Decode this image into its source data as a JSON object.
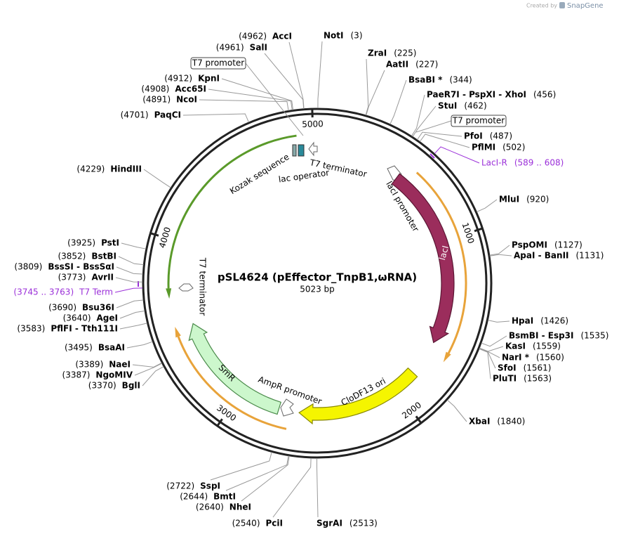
{
  "header": {
    "credit": "Created by",
    "brand": "SnapGene"
  },
  "map": {
    "name": "pSL4624 (pEffector_TnpB1,ωRNA)",
    "length_label": "5023 bp",
    "length": 5023,
    "ticks": [
      1000,
      2000,
      3000,
      4000,
      5000
    ]
  },
  "sites": [
    {
      "name": "NotI",
      "position": 3,
      "label": "(3)"
    },
    {
      "name": "ZraI",
      "position": 225,
      "label": "(225)"
    },
    {
      "name": "AatII",
      "position": 227,
      "label": "(227)"
    },
    {
      "name": "BsaBI *",
      "position": 344,
      "label": "(344)"
    },
    {
      "name": "PaeR7I - PspXI - XhoI",
      "position": 456,
      "label": "(456)"
    },
    {
      "name": "StuI",
      "position": 462,
      "label": "(462)"
    },
    {
      "name": "PfoI",
      "position": 487,
      "label": "(487)"
    },
    {
      "name": "PflMI",
      "position": 502,
      "label": "(502)"
    },
    {
      "name": "LacI-R",
      "position": 589,
      "label": "(589 .. 608)",
      "color": "#9b30d9"
    },
    {
      "name": "MluI",
      "position": 920,
      "label": "(920)"
    },
    {
      "name": "PspOMI",
      "position": 1127,
      "label": "(1127)"
    },
    {
      "name": "ApaI - BanII",
      "position": 1131,
      "label": "(1131)"
    },
    {
      "name": "HpaI",
      "position": 1426,
      "label": "(1426)"
    },
    {
      "name": "BsmBI - Esp3I",
      "position": 1535,
      "label": "(1535)"
    },
    {
      "name": "KasI",
      "position": 1559,
      "label": "(1559)"
    },
    {
      "name": "NarI *",
      "position": 1560,
      "label": "(1560)"
    },
    {
      "name": "SfoI",
      "position": 1561,
      "label": "(1561)"
    },
    {
      "name": "PluTI",
      "position": 1563,
      "label": "(1563)"
    },
    {
      "name": "XbaI",
      "position": 1840,
      "label": "(1840)"
    },
    {
      "name": "SgrAI",
      "position": 2513,
      "label": "(2513)"
    },
    {
      "name": "PciI",
      "position": 2540,
      "label": "(2540)"
    },
    {
      "name": "NheI",
      "position": 2640,
      "label": "(2640)"
    },
    {
      "name": "BmtI",
      "position": 2644,
      "label": "(2644)"
    },
    {
      "name": "SspI",
      "position": 2722,
      "label": "(2722)"
    },
    {
      "name": "BglI",
      "position": 3370,
      "label": "(3370)"
    },
    {
      "name": "NgoMIV",
      "position": 3387,
      "label": "(3387)"
    },
    {
      "name": "NaeI",
      "position": 3389,
      "label": "(3389)"
    },
    {
      "name": "BsaAI",
      "position": 3495,
      "label": "(3495)"
    },
    {
      "name": "PflFI - Tth111I",
      "position": 3583,
      "label": "(3583)"
    },
    {
      "name": "AgeI",
      "position": 3640,
      "label": "(3640)"
    },
    {
      "name": "Bsu36I",
      "position": 3690,
      "label": "(3690)"
    },
    {
      "name": "T7 Term",
      "position": 3745,
      "label": "(3745 .. 3763)",
      "color": "#9b30d9"
    },
    {
      "name": "AvrII",
      "position": 3773,
      "label": "(3773)"
    },
    {
      "name": "BssSI - BssSαI",
      "position": 3809,
      "label": "(3809)"
    },
    {
      "name": "BstBI",
      "position": 3852,
      "label": "(3852)"
    },
    {
      "name": "PstI",
      "position": 3925,
      "label": "(3925)"
    },
    {
      "name": "HindIII",
      "position": 4229,
      "label": "(4229)"
    },
    {
      "name": "PaqCI",
      "position": 4701,
      "label": "(4701)"
    },
    {
      "name": "NcoI",
      "position": 4891,
      "label": "(4891)"
    },
    {
      "name": "Acc65I",
      "position": 4908,
      "label": "(4908)"
    },
    {
      "name": "KpnI",
      "position": 4912,
      "label": "(4912)"
    },
    {
      "name": "SalI",
      "position": 4961,
      "label": "(4961)"
    },
    {
      "name": "AccI",
      "position": 4962,
      "label": "(4962)"
    }
  ],
  "boxes": [
    {
      "label": "T7 promoter"
    },
    {
      "label": "T7 promoter"
    }
  ],
  "features": [
    {
      "label": "Kozak sequence"
    },
    {
      "label": "lac operator"
    },
    {
      "label": "T7 terminator"
    },
    {
      "label": "lacI promoter"
    },
    {
      "label": "lacI"
    },
    {
      "label": "CloDF13 ori"
    },
    {
      "label": "AmpR promoter"
    },
    {
      "label": "SmR"
    },
    {
      "label": "T7 terminator"
    }
  ]
}
